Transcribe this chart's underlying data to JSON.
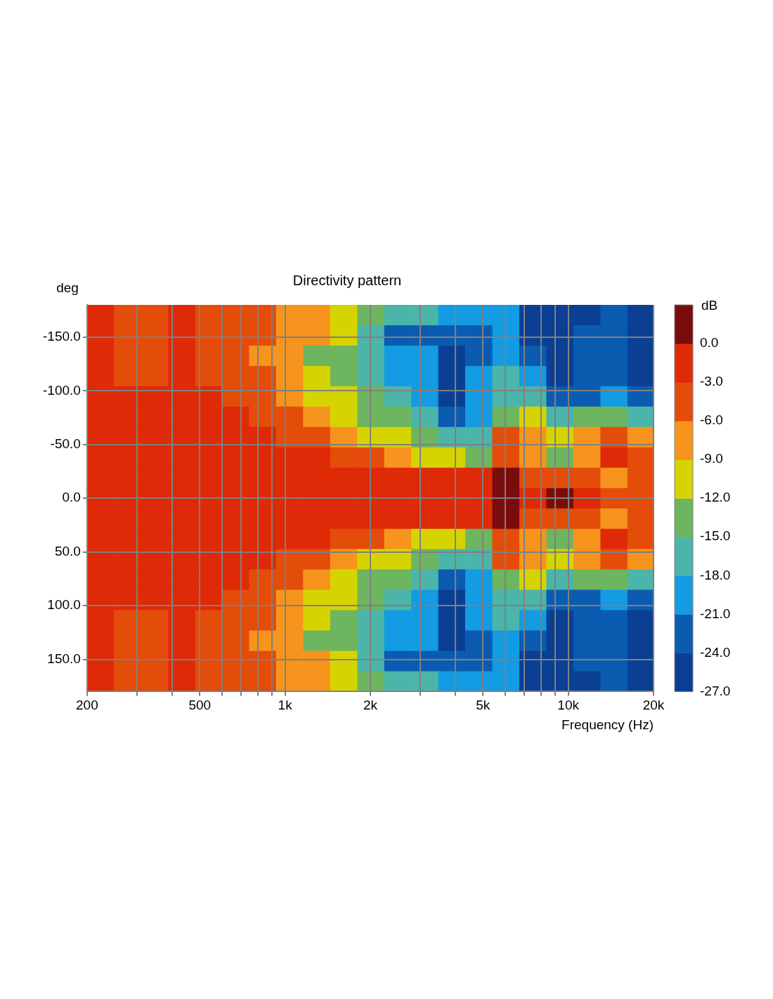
{
  "chart_data": {
    "type": "heatmap",
    "title": "Directivity pattern",
    "xlabel": "Frequency (Hz)",
    "ylabel": "deg",
    "clabel": "dB",
    "x": [
      223,
      278,
      346,
      431,
      537,
      669,
      833,
      1038,
      1293,
      1611,
      2006,
      2499,
      3113,
      3878,
      4831,
      6018,
      7497,
      9339,
      11634,
      14493,
      18054
    ],
    "log": "x",
    "xlim": [
      200,
      20000
    ],
    "xticks": [
      200,
      {
        "value": 300,
        "label": null
      },
      {
        "value": 400,
        "label": null
      },
      500,
      {
        "value": 600,
        "label": null
      },
      {
        "value": 700,
        "label": null
      },
      {
        "value": 800,
        "label": null
      },
      {
        "value": 900,
        "label": null
      },
      {
        "value": 1000,
        "label": "1k"
      },
      {
        "value": 2000,
        "label": "2k"
      },
      {
        "value": 3000,
        "label": null
      },
      {
        "value": 4000,
        "label": null
      },
      {
        "value": 5000,
        "label": "5k"
      },
      {
        "value": 6000,
        "label": null
      },
      {
        "value": 7000,
        "label": null
      },
      {
        "value": 8000,
        "label": null
      },
      {
        "value": 9000,
        "label": null
      },
      {
        "value": 10000,
        "label": "10k"
      },
      {
        "value": 20000,
        "label": "20k"
      }
    ],
    "ylim": [
      180,
      -180
    ],
    "yticks": [
      {
        "value": -150,
        "label": "-150.0"
      },
      {
        "value": -100,
        "label": "-100.0"
      },
      {
        "value": -50,
        "label": "-50.0"
      },
      {
        "value": 0,
        "label": "0.0"
      },
      {
        "value": 50,
        "label": "50.0"
      },
      {
        "value": 100,
        "label": "100.0"
      },
      {
        "value": 150,
        "label": "150.0"
      }
    ],
    "grid": true,
    "clim": [
      -27,
      3
    ],
    "cticks": [
      {
        "value": 0,
        "label": "0.0"
      },
      {
        "value": -3,
        "label": "-3.0"
      },
      {
        "value": -6,
        "label": "-6.0"
      },
      {
        "value": -9,
        "label": "-9.0"
      },
      {
        "value": -12,
        "label": "-12.0"
      },
      {
        "value": -15,
        "label": "-15.0"
      },
      {
        "value": -18,
        "label": "-18.0"
      },
      {
        "value": -21,
        "label": "-21.0"
      },
      {
        "value": -24,
        "label": "-24.0"
      },
      {
        "value": -27,
        "label": "-27.0"
      }
    ],
    "colors": [
      "#0a3f93",
      "#0b5cb0",
      "#139be3",
      "#4bb5aa",
      "#6db55f",
      "#d6d400",
      "#f7941d",
      "#e44c0a",
      "#de2a06",
      "#7b0c0c"
    ],
    "cells": [
      [
        -1.5,
        -4.5,
        -4.5,
        -1.5,
        -4.5,
        -4.5,
        -4.5,
        -7.5,
        -7.5,
        -10.5,
        -13.5,
        -16.5,
        -16.5,
        -19.5,
        -19.5,
        -19.5,
        -25.5,
        -25.5,
        -25.5,
        -22.5,
        -25.5
      ],
      [
        -1.5,
        -4.5,
        -4.5,
        -1.5,
        -4.5,
        -4.5,
        -4.5,
        -7.5,
        -7.5,
        -10.5,
        -16.5,
        -22.5,
        -22.5,
        -22.5,
        -22.5,
        -19.5,
        -25.5,
        -25.5,
        -22.5,
        -22.5,
        -25.5
      ],
      [
        -1.5,
        -4.5,
        -4.5,
        -1.5,
        -4.5,
        -4.5,
        -7.5,
        -7.5,
        -13.5,
        -13.5,
        -16.5,
        -19.5,
        -19.5,
        -25.5,
        -22.5,
        -19.5,
        -22.5,
        -25.5,
        -22.5,
        -22.5,
        -25.5
      ],
      [
        -1.5,
        -4.5,
        -4.5,
        -1.5,
        -4.5,
        -4.5,
        -4.5,
        -7.5,
        -10.5,
        -13.5,
        -16.5,
        -19.5,
        -19.5,
        -25.5,
        -19.5,
        -16.5,
        -19.5,
        -25.5,
        -22.5,
        -22.5,
        -25.5
      ],
      [
        -1.5,
        -1.5,
        -1.5,
        -1.5,
        -1.5,
        -4.5,
        -4.5,
        -7.5,
        -10.5,
        -10.5,
        -13.5,
        -16.5,
        -19.5,
        -25.5,
        -19.5,
        -16.5,
        -16.5,
        -22.5,
        -22.5,
        -19.5,
        -22.5
      ],
      [
        -1.5,
        -1.5,
        -1.5,
        -1.5,
        -1.5,
        -1.5,
        -4.5,
        -4.5,
        -7.5,
        -10.5,
        -13.5,
        -13.5,
        -16.5,
        -22.5,
        -19.5,
        -13.5,
        -10.5,
        -16.5,
        -13.5,
        -13.5,
        -16.5
      ],
      [
        -1.5,
        -1.5,
        -1.5,
        -1.5,
        -1.5,
        -1.5,
        -1.5,
        -4.5,
        -4.5,
        -7.5,
        -10.5,
        -10.5,
        -13.5,
        -16.5,
        -16.5,
        -4.5,
        -7.5,
        -10.5,
        -7.5,
        -4.5,
        -7.5
      ],
      [
        -1.5,
        -1.5,
        -1.5,
        -1.5,
        -1.5,
        -1.5,
        -1.5,
        -1.5,
        -1.5,
        -4.5,
        -4.5,
        -7.5,
        -10.5,
        -10.5,
        -13.5,
        -4.5,
        -7.5,
        -13.5,
        -7.5,
        -1.5,
        -4.5
      ],
      [
        -1.5,
        -1.5,
        -1.5,
        -1.5,
        -1.5,
        -1.5,
        -1.5,
        -1.5,
        -1.5,
        -1.5,
        -1.5,
        -1.5,
        -1.5,
        -1.5,
        -1.5,
        1.5,
        -4.5,
        -4.5,
        -4.5,
        -7.5,
        -4.5
      ],
      [
        -1.5,
        -1.5,
        -1.5,
        -1.5,
        -1.5,
        -1.5,
        -1.5,
        -1.5,
        -1.5,
        -1.5,
        -1.5,
        -1.5,
        -1.5,
        -1.5,
        -1.5,
        1.5,
        -1.5,
        1.5,
        -1.5,
        -4.5,
        -4.5
      ],
      [
        -1.5,
        -1.5,
        -1.5,
        -1.5,
        -1.5,
        -1.5,
        -1.5,
        -1.5,
        -1.5,
        -1.5,
        -1.5,
        -1.5,
        -1.5,
        -1.5,
        -1.5,
        1.5,
        -4.5,
        -4.5,
        -4.5,
        -7.5,
        -4.5
      ],
      [
        -1.5,
        -1.5,
        -1.5,
        -1.5,
        -1.5,
        -1.5,
        -1.5,
        -1.5,
        -1.5,
        -4.5,
        -4.5,
        -7.5,
        -10.5,
        -10.5,
        -13.5,
        -4.5,
        -7.5,
        -13.5,
        -7.5,
        -1.5,
        -4.5
      ],
      [
        -1.5,
        -1.5,
        -1.5,
        -1.5,
        -1.5,
        -1.5,
        -1.5,
        -4.5,
        -4.5,
        -7.5,
        -10.5,
        -10.5,
        -13.5,
        -16.5,
        -16.5,
        -4.5,
        -7.5,
        -10.5,
        -7.5,
        -4.5,
        -7.5
      ],
      [
        -1.5,
        -1.5,
        -1.5,
        -1.5,
        -1.5,
        -1.5,
        -4.5,
        -4.5,
        -7.5,
        -10.5,
        -13.5,
        -13.5,
        -16.5,
        -22.5,
        -19.5,
        -13.5,
        -10.5,
        -16.5,
        -13.5,
        -13.5,
        -16.5
      ],
      [
        -1.5,
        -1.5,
        -1.5,
        -1.5,
        -1.5,
        -4.5,
        -4.5,
        -7.5,
        -10.5,
        -10.5,
        -13.5,
        -16.5,
        -19.5,
        -25.5,
        -19.5,
        -16.5,
        -16.5,
        -22.5,
        -22.5,
        -19.5,
        -22.5
      ],
      [
        -1.5,
        -4.5,
        -4.5,
        -1.5,
        -4.5,
        -4.5,
        -4.5,
        -7.5,
        -10.5,
        -13.5,
        -16.5,
        -19.5,
        -19.5,
        -25.5,
        -19.5,
        -16.5,
        -19.5,
        -25.5,
        -22.5,
        -22.5,
        -25.5
      ],
      [
        -1.5,
        -4.5,
        -4.5,
        -1.5,
        -4.5,
        -4.5,
        -7.5,
        -7.5,
        -13.5,
        -13.5,
        -16.5,
        -19.5,
        -19.5,
        -25.5,
        -22.5,
        -19.5,
        -22.5,
        -25.5,
        -22.5,
        -22.5,
        -25.5
      ],
      [
        -1.5,
        -4.5,
        -4.5,
        -1.5,
        -4.5,
        -4.5,
        -4.5,
        -7.5,
        -7.5,
        -10.5,
        -16.5,
        -22.5,
        -22.5,
        -22.5,
        -22.5,
        -19.5,
        -25.5,
        -25.5,
        -22.5,
        -22.5,
        -25.5
      ],
      [
        -1.5,
        -4.5,
        -4.5,
        -1.5,
        -4.5,
        -4.5,
        -4.5,
        -7.5,
        -7.5,
        -10.5,
        -13.5,
        -16.5,
        -16.5,
        -19.5,
        -19.5,
        -19.5,
        -25.5,
        -25.5,
        -25.5,
        -22.5,
        -25.5
      ]
    ]
  }
}
